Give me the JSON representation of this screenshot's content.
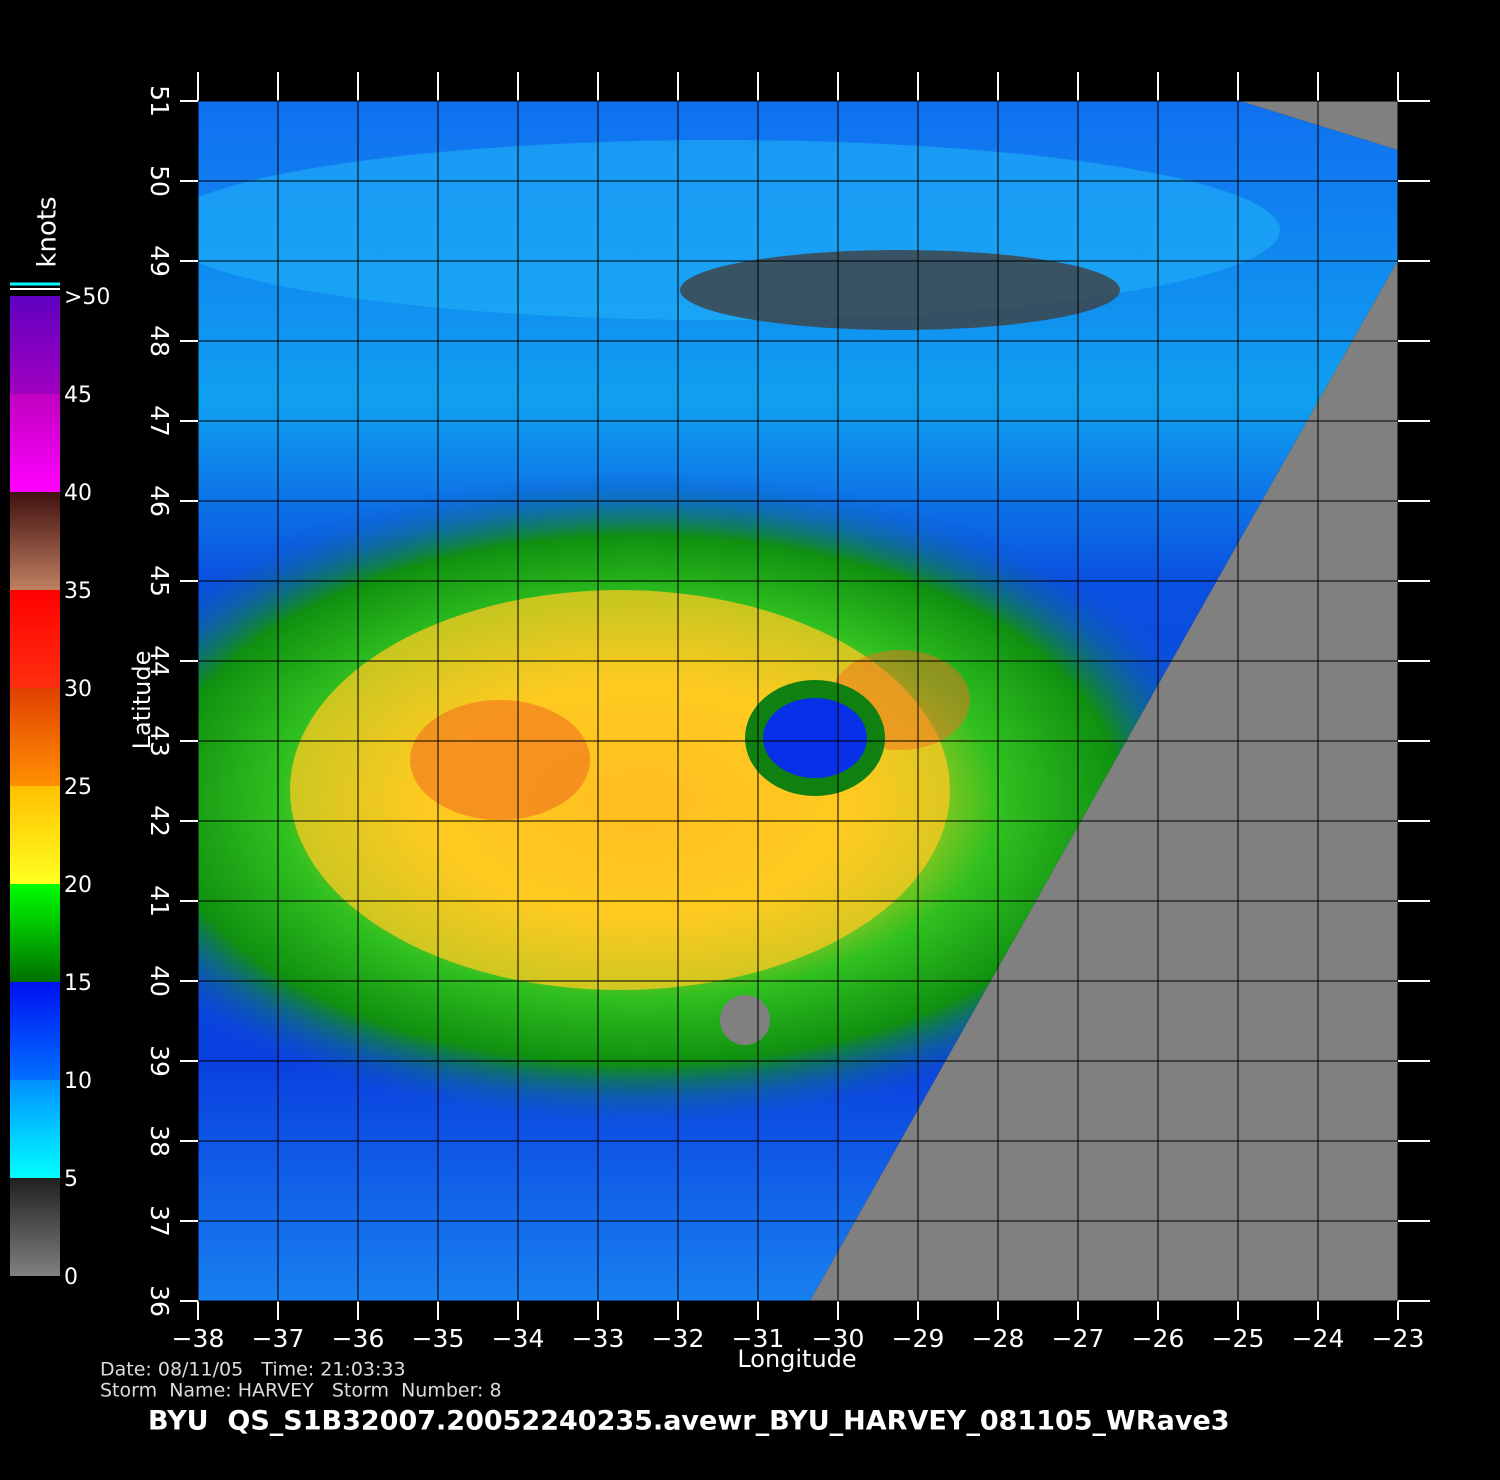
{
  "map": {
    "xlabel": "Longitude",
    "ylabel": "Latitude",
    "xlim": [
      -38,
      -23
    ],
    "ylim": [
      36,
      51
    ],
    "xticks": [
      {
        "value": -38,
        "label": "−38"
      },
      {
        "value": -37,
        "label": "−37"
      },
      {
        "value": -36,
        "label": "−36"
      },
      {
        "value": -35,
        "label": "−35"
      },
      {
        "value": -34,
        "label": "−34"
      },
      {
        "value": -33,
        "label": "−33"
      },
      {
        "value": -32,
        "label": "−32"
      },
      {
        "value": -31,
        "label": "−31"
      },
      {
        "value": -30,
        "label": "−30"
      },
      {
        "value": -29,
        "label": "−29"
      },
      {
        "value": -28,
        "label": "−28"
      },
      {
        "value": -27,
        "label": "−27"
      },
      {
        "value": -26,
        "label": "−26"
      },
      {
        "value": -25,
        "label": "−25"
      },
      {
        "value": -24,
        "label": "−24"
      },
      {
        "value": -23,
        "label": "−23"
      }
    ],
    "yticks": [
      36,
      37,
      38,
      39,
      40,
      41,
      42,
      43,
      44,
      45,
      46,
      47,
      48,
      49,
      50,
      51
    ],
    "grid": true
  },
  "colorbar": {
    "label": "knots",
    "lim": [
      0,
      50
    ],
    "ticks": [
      0,
      5,
      10,
      15,
      20,
      25,
      30,
      35,
      40,
      45,
      {
        "value": 50,
        "label": ">50"
      }
    ],
    "bands": [
      [
        "#808080",
        "#202020"
      ],
      [
        "#00ffff",
        "#0090ff"
      ],
      [
        "#0070ff",
        "#0010f0"
      ],
      [
        "#007000",
        "#00ff00"
      ],
      [
        "#ffff20",
        "#ffc000"
      ],
      [
        "#ff9000",
        "#e04000"
      ],
      [
        "#ff3010",
        "#ff0000"
      ],
      [
        "#c08060",
        "#401010"
      ],
      [
        "#ff00ff",
        "#c000c0"
      ],
      [
        "#a000c0",
        "#6000c0"
      ]
    ]
  },
  "footer": {
    "info1": "Date: 08/11/05   Time: 21:03:33",
    "info2": "Storm  Name: HARVEY   Storm  Number: 8",
    "title": "BYU  QS_S1B32007.20052240235.avewr_BYU_HARVEY_081105_WRave3"
  }
}
